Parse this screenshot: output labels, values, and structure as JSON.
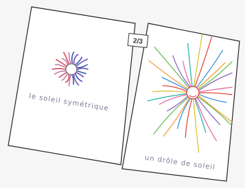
{
  "badge": "2/3",
  "drawings": [
    {
      "caption": "le soleil symétrique"
    },
    {
      "caption": "un drôle de soleil"
    }
  ]
}
